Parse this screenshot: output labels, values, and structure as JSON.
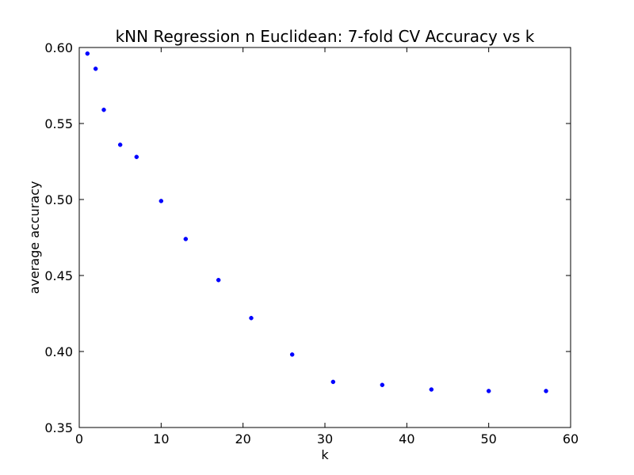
{
  "chart_data": {
    "type": "scatter",
    "title": "kNN Regression n Euclidean: 7-fold CV Accuracy vs k",
    "xlabel": "k",
    "ylabel": "average accuracy",
    "xlim": [
      0,
      60
    ],
    "ylim": [
      0.35,
      0.6
    ],
    "xticks": [
      "0",
      "10",
      "20",
      "30",
      "40",
      "50",
      "60"
    ],
    "yticks": [
      "0.35",
      "0.40",
      "0.45",
      "0.50",
      "0.55",
      "0.60"
    ],
    "grid": false,
    "legend": "none",
    "marker_color": "#0000ff",
    "series": [
      {
        "x": [
          1,
          2,
          3,
          5,
          7,
          10,
          13,
          17,
          21,
          26,
          31,
          37,
          43,
          50,
          57
        ],
        "y": [
          0.596,
          0.586,
          0.559,
          0.536,
          0.528,
          0.499,
          0.474,
          0.447,
          0.422,
          0.398,
          0.38,
          0.378,
          0.375,
          0.374,
          0.374
        ]
      }
    ]
  }
}
